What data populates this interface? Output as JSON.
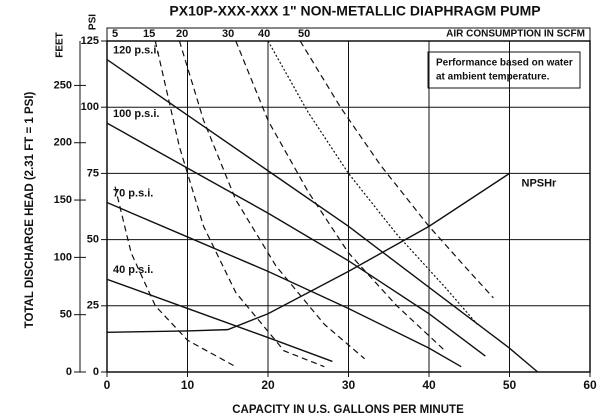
{
  "chart_data": {
    "type": "line",
    "title": "PX10P-XXX-XXX 1\" NON-METALLIC DIAPHRAGM PUMP",
    "x_label": "CAPACITY IN U.S. GALLONS PER MINUTE",
    "y_label": "TOTAL DISCHARGE HEAD (2.31 FT = 1 PSI)",
    "y_unit_label": "PSI",
    "y2_unit_label": "FEET",
    "top_label": "AIR CONSUMPTION IN SCFM",
    "annotation": [
      "Performance based on water",
      "at ambient temperature."
    ],
    "xlim": [
      0,
      60
    ],
    "xticks": [
      0,
      10,
      20,
      30,
      40,
      50,
      60
    ],
    "ylim": [
      0,
      125
    ],
    "yticks": [
      0,
      25,
      50,
      75,
      100,
      125
    ],
    "y2lim": [
      0,
      288.75
    ],
    "y2ticks": [
      0,
      50,
      100,
      150,
      200,
      250
    ],
    "grid": true,
    "series": [
      {
        "name": "120 p.s.i.",
        "color": "#111",
        "style": "solid",
        "x": [
          0,
          10,
          20,
          30,
          40,
          50,
          53.5
        ],
        "values": [
          118,
          97,
          76,
          55,
          32,
          9,
          0
        ]
      },
      {
        "name": "100 p.s.i.",
        "color": "#111",
        "style": "solid",
        "x": [
          0,
          10,
          20,
          30,
          40,
          47
        ],
        "values": [
          94,
          77,
          60,
          42,
          22,
          6
        ]
      },
      {
        "name": "70 p.s.i.",
        "color": "#111",
        "style": "solid",
        "x": [
          0,
          10,
          20,
          30,
          40,
          44
        ],
        "values": [
          64,
          51,
          38,
          24,
          9,
          2
        ]
      },
      {
        "name": "40 p.s.i.",
        "color": "#111",
        "style": "solid",
        "x": [
          0,
          10,
          20,
          28
        ],
        "values": [
          35,
          24,
          13,
          4
        ]
      },
      {
        "name": "5",
        "color": "#111",
        "style": "dashed",
        "x": [
          1,
          3,
          6,
          10,
          16
        ],
        "values": [
          70,
          45,
          25,
          12,
          2
        ]
      },
      {
        "name": "15",
        "color": "#111",
        "style": "dashed",
        "x": [
          6,
          9,
          12,
          16,
          22,
          27
        ],
        "values": [
          125,
          85,
          55,
          30,
          8,
          2
        ]
      },
      {
        "name": "20",
        "color": "#111",
        "style": "dashed",
        "x": [
          9,
          12,
          16,
          21,
          27,
          32
        ],
        "values": [
          125,
          95,
          65,
          40,
          18,
          5
        ]
      },
      {
        "name": "30",
        "color": "#111",
        "style": "dashed",
        "x": [
          16,
          20,
          25,
          30,
          36,
          42
        ],
        "values": [
          125,
          95,
          68,
          45,
          25,
          8
        ]
      },
      {
        "name": "40",
        "color": "#111",
        "style": "dotted",
        "x": [
          20,
          25,
          30,
          36,
          42,
          46
        ],
        "values": [
          125,
          98,
          75,
          52,
          32,
          18
        ]
      },
      {
        "name": "50",
        "color": "#111",
        "style": "dashed",
        "x": [
          24,
          29,
          34,
          40,
          45,
          48
        ],
        "values": [
          125,
          100,
          78,
          55,
          38,
          28
        ]
      },
      {
        "name": "NPSHr",
        "color": "#111",
        "style": "solid",
        "x": [
          0,
          10,
          15,
          20,
          30,
          40,
          50
        ],
        "values": [
          15,
          15.5,
          16,
          22,
          38,
          55,
          75
        ]
      }
    ]
  }
}
